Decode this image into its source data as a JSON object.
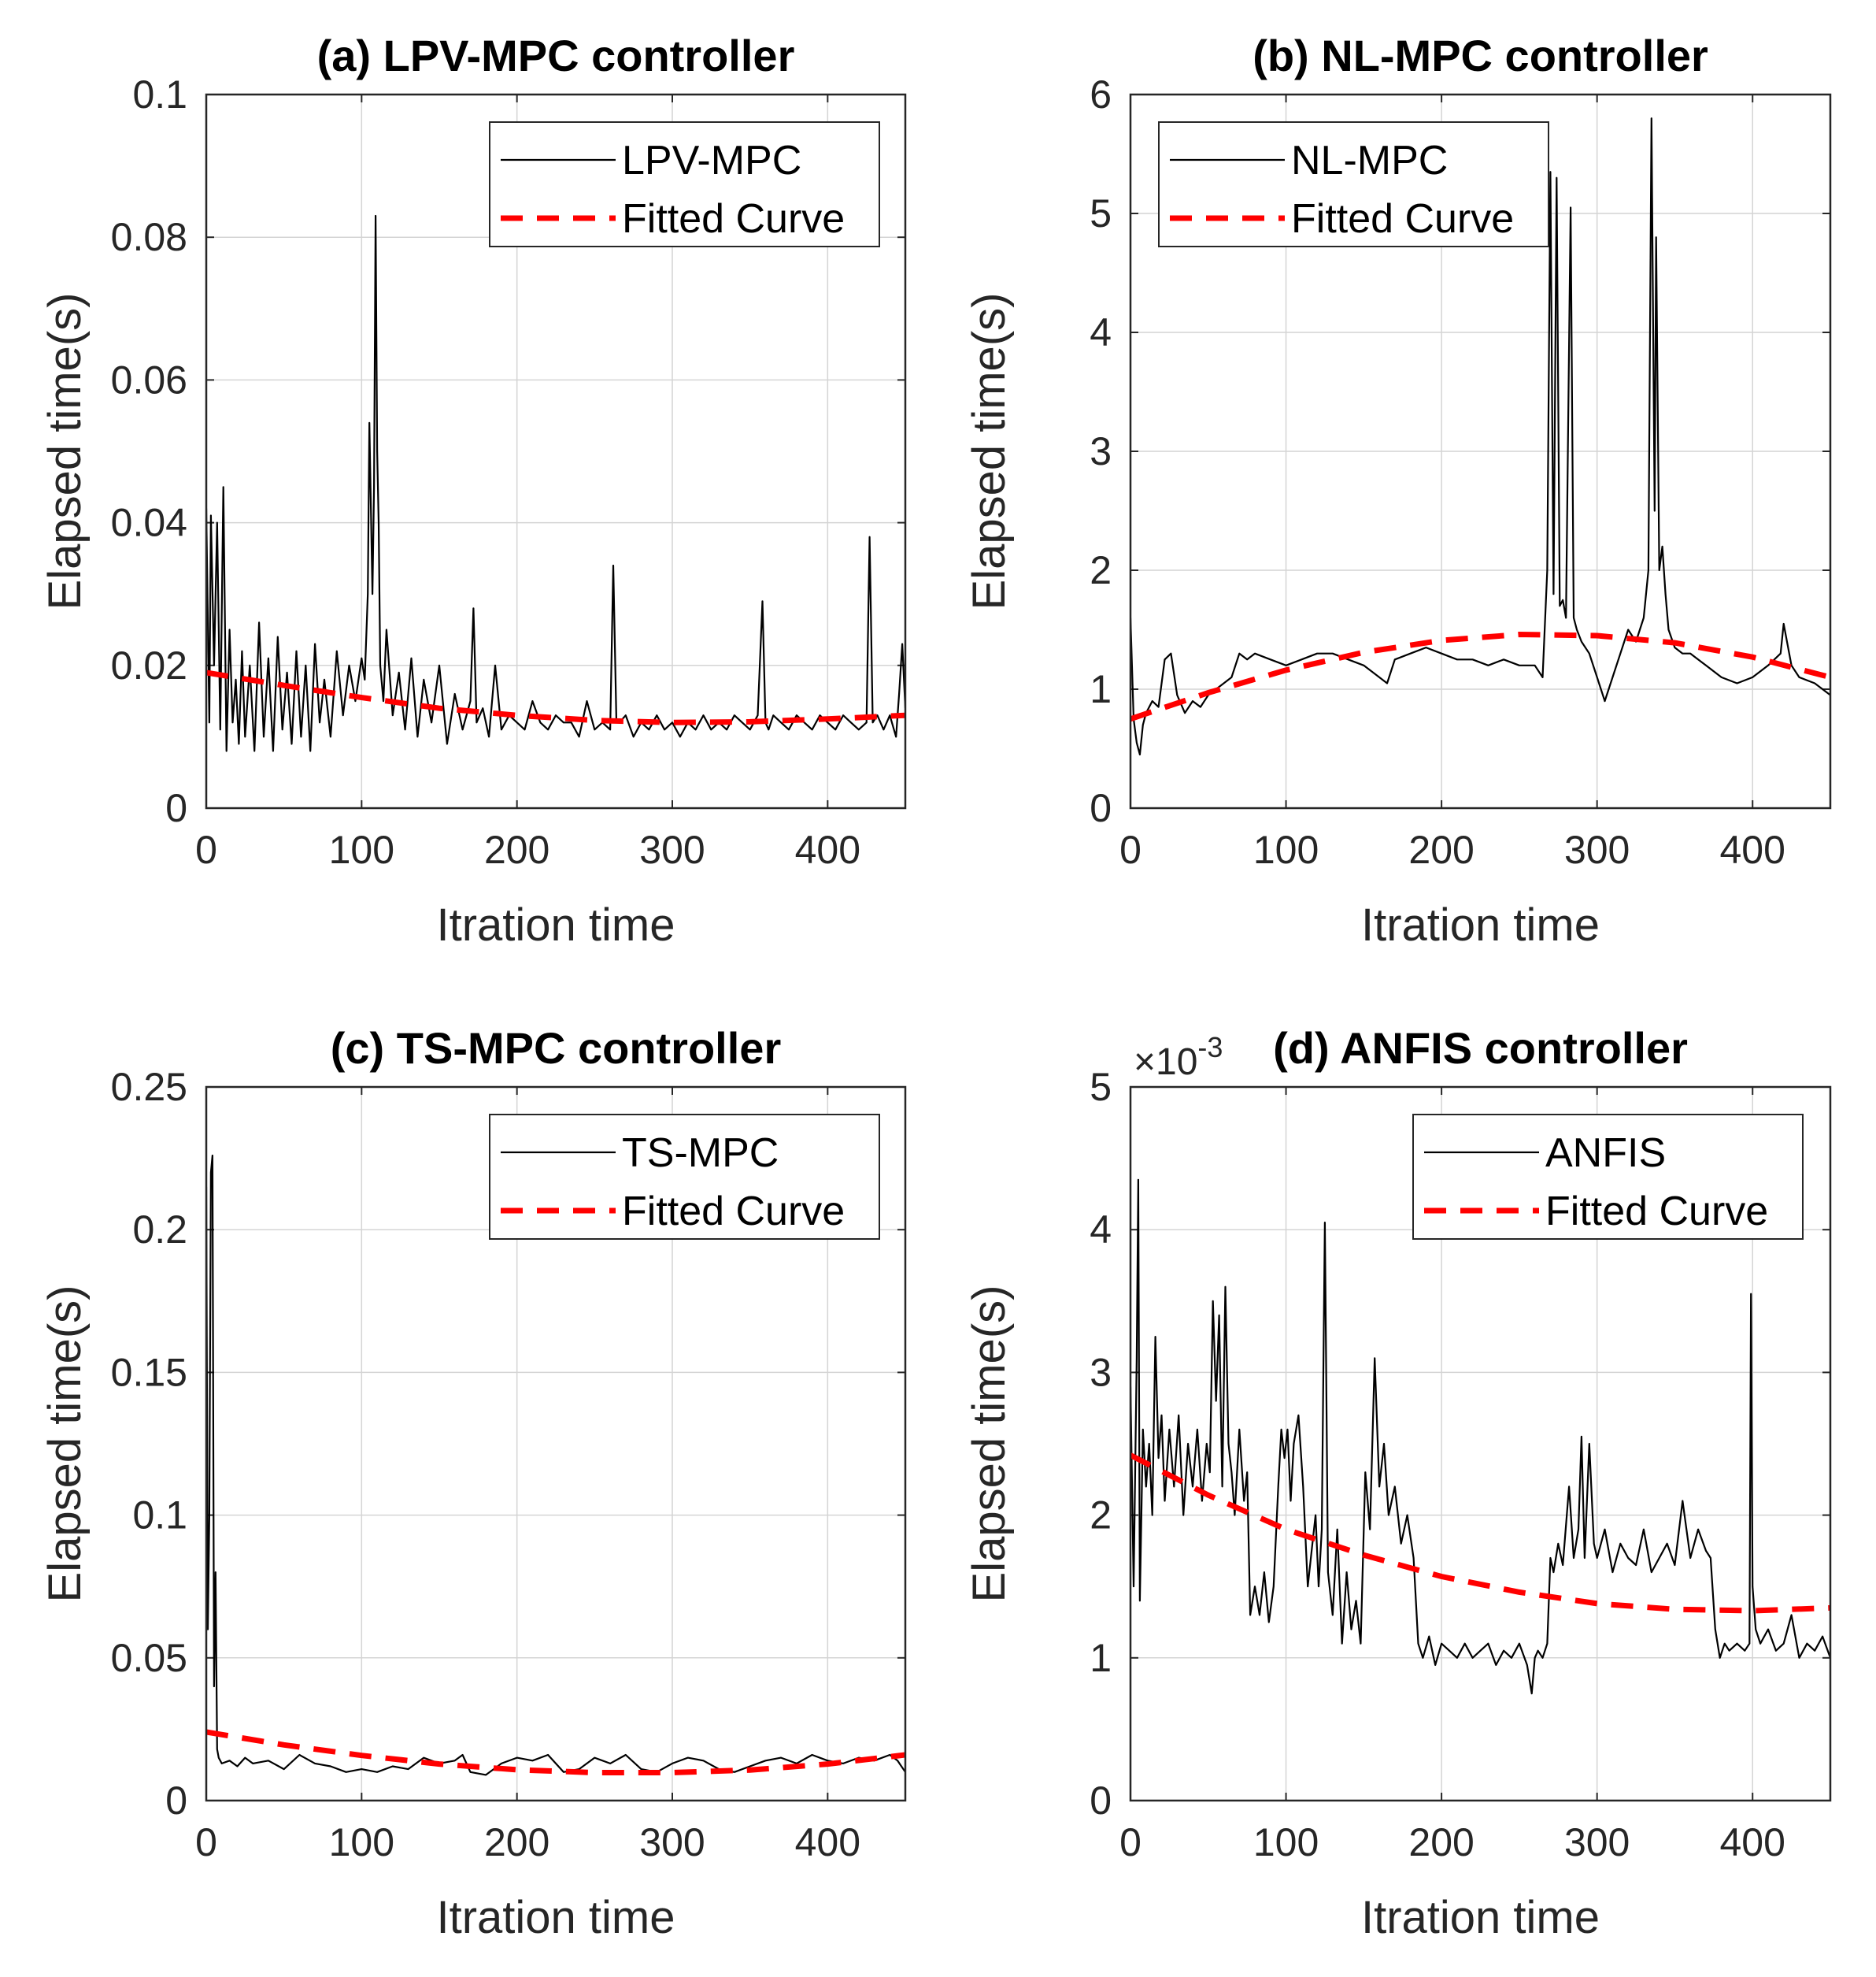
{
  "chart_data": [
    {
      "type": "line",
      "title": "(a) LPV-MPC controller",
      "xlabel": "Itration time",
      "ylabel": "Elapsed time(s)",
      "xlim": [
        0,
        450
      ],
      "ylim": [
        0,
        0.1
      ],
      "xticks": [
        "0",
        "100",
        "200",
        "300",
        "400"
      ],
      "yticks": [
        "0",
        "0.02",
        "0.04",
        "0.06",
        "0.08",
        "0.1"
      ],
      "ytick_values": [
        0,
        0.02,
        0.04,
        0.06,
        0.08,
        0.1
      ],
      "grid": true,
      "legend_placement": "top-right",
      "exponent_label": "",
      "series": [
        {
          "name": "LPV-MPC",
          "style": "solid-black",
          "x": [
            0,
            2,
            3,
            5,
            7,
            9,
            11,
            13,
            15,
            17,
            19,
            21,
            23,
            25,
            28,
            31,
            34,
            37,
            40,
            43,
            46,
            49,
            52,
            55,
            58,
            61,
            64,
            67,
            70,
            73,
            76,
            80,
            84,
            88,
            92,
            96,
            100,
            102,
            104,
            105,
            107,
            108,
            109,
            110,
            111,
            112,
            114,
            116,
            120,
            124,
            128,
            132,
            136,
            140,
            145,
            150,
            155,
            160,
            165,
            170,
            172,
            174,
            178,
            182,
            186,
            190,
            195,
            200,
            205,
            210,
            215,
            220,
            225,
            230,
            235,
            240,
            245,
            250,
            255,
            260,
            262,
            264,
            266,
            270,
            275,
            280,
            285,
            290,
            295,
            300,
            305,
            310,
            315,
            320,
            325,
            330,
            335,
            340,
            345,
            350,
            355,
            358,
            360,
            362,
            365,
            370,
            375,
            380,
            385,
            390,
            395,
            400,
            405,
            410,
            415,
            420,
            425,
            427,
            429,
            432,
            436,
            440,
            444,
            446,
            448,
            450
          ],
          "y": [
            0.042,
            0.012,
            0.041,
            0.02,
            0.04,
            0.011,
            0.045,
            0.008,
            0.025,
            0.012,
            0.018,
            0.009,
            0.022,
            0.01,
            0.02,
            0.008,
            0.026,
            0.01,
            0.021,
            0.008,
            0.024,
            0.011,
            0.019,
            0.009,
            0.022,
            0.01,
            0.02,
            0.008,
            0.023,
            0.012,
            0.018,
            0.01,
            0.022,
            0.013,
            0.02,
            0.015,
            0.021,
            0.018,
            0.03,
            0.054,
            0.03,
            0.045,
            0.083,
            0.05,
            0.04,
            0.02,
            0.015,
            0.025,
            0.013,
            0.019,
            0.011,
            0.021,
            0.01,
            0.018,
            0.012,
            0.02,
            0.009,
            0.016,
            0.011,
            0.015,
            0.028,
            0.012,
            0.014,
            0.01,
            0.02,
            0.011,
            0.013,
            0.012,
            0.011,
            0.015,
            0.012,
            0.011,
            0.013,
            0.012,
            0.012,
            0.01,
            0.015,
            0.011,
            0.012,
            0.011,
            0.034,
            0.012,
            0.012,
            0.013,
            0.01,
            0.012,
            0.011,
            0.013,
            0.011,
            0.012,
            0.01,
            0.012,
            0.011,
            0.013,
            0.011,
            0.012,
            0.011,
            0.013,
            0.012,
            0.011,
            0.013,
            0.029,
            0.012,
            0.011,
            0.013,
            0.012,
            0.011,
            0.013,
            0.012,
            0.011,
            0.013,
            0.012,
            0.011,
            0.013,
            0.012,
            0.011,
            0.012,
            0.038,
            0.012,
            0.013,
            0.011,
            0.013,
            0.01,
            0.016,
            0.023,
            0.014
          ]
        },
        {
          "name": "Fitted Curve",
          "style": "dashed-red",
          "x": [
            0,
            50,
            100,
            150,
            200,
            250,
            300,
            350,
            400,
            450
          ],
          "y": [
            0.019,
            0.0172,
            0.0155,
            0.014,
            0.013,
            0.0123,
            0.012,
            0.0121,
            0.0125,
            0.013
          ]
        }
      ]
    },
    {
      "type": "line",
      "title": "(b) NL-MPC controller",
      "xlabel": "Itration time",
      "ylabel": "Elapsed time(s)",
      "xlim": [
        0,
        450
      ],
      "ylim": [
        0,
        6
      ],
      "xticks": [
        "0",
        "100",
        "200",
        "300",
        "400"
      ],
      "yticks": [
        "0",
        "1",
        "2",
        "3",
        "4",
        "5",
        "6"
      ],
      "ytick_values": [
        0,
        1,
        2,
        3,
        4,
        5,
        6
      ],
      "grid": true,
      "legend_placement": "top-left",
      "exponent_label": "",
      "series": [
        {
          "name": "NL-MPC",
          "style": "solid-black",
          "x": [
            0,
            2,
            4,
            6,
            8,
            10,
            14,
            18,
            22,
            26,
            30,
            35,
            40,
            45,
            50,
            55,
            60,
            65,
            70,
            75,
            80,
            90,
            100,
            110,
            120,
            130,
            140,
            150,
            160,
            165,
            170,
            180,
            190,
            200,
            210,
            220,
            230,
            240,
            250,
            260,
            265,
            268,
            270,
            272,
            274,
            276,
            278,
            280,
            283,
            285,
            287,
            290,
            295,
            300,
            305,
            310,
            315,
            320,
            325,
            330,
            333,
            335,
            337,
            338,
            340,
            342,
            344,
            346,
            350,
            355,
            360,
            370,
            380,
            390,
            400,
            410,
            418,
            420,
            425,
            430,
            440,
            450
          ],
          "y": [
            1.6,
            0.75,
            0.55,
            0.45,
            0.7,
            0.8,
            0.9,
            0.85,
            1.25,
            1.3,
            0.95,
            0.8,
            0.9,
            0.85,
            0.95,
            1.0,
            1.05,
            1.1,
            1.3,
            1.25,
            1.3,
            1.25,
            1.2,
            1.25,
            1.3,
            1.3,
            1.25,
            1.2,
            1.1,
            1.05,
            1.25,
            1.3,
            1.35,
            1.3,
            1.25,
            1.25,
            1.2,
            1.25,
            1.2,
            1.2,
            1.1,
            2.0,
            5.35,
            1.8,
            5.3,
            1.7,
            1.75,
            1.6,
            5.05,
            1.6,
            1.5,
            1.4,
            1.3,
            1.1,
            0.9,
            1.1,
            1.3,
            1.5,
            1.4,
            1.6,
            2.0,
            5.8,
            2.5,
            4.8,
            2.0,
            2.2,
            1.8,
            1.5,
            1.35,
            1.3,
            1.3,
            1.2,
            1.1,
            1.05,
            1.1,
            1.2,
            1.3,
            1.55,
            1.2,
            1.1,
            1.05,
            0.95
          ]
        },
        {
          "name": "Fitted Curve",
          "style": "dashed-red",
          "x": [
            0,
            50,
            100,
            150,
            200,
            250,
            300,
            350,
            400,
            450
          ],
          "y": [
            0.75,
            0.97,
            1.16,
            1.31,
            1.41,
            1.46,
            1.45,
            1.39,
            1.27,
            1.1
          ]
        }
      ]
    },
    {
      "type": "line",
      "title": "(c) TS-MPC controller",
      "xlabel": "Itration time",
      "ylabel": "Elapsed time(s)",
      "xlim": [
        0,
        450
      ],
      "ylim": [
        0,
        0.25
      ],
      "xticks": [
        "0",
        "100",
        "200",
        "300",
        "400"
      ],
      "yticks": [
        "0",
        "0.05",
        "0.1",
        "0.15",
        "0.2",
        "0.25"
      ],
      "ytick_values": [
        0,
        0.05,
        0.1,
        0.15,
        0.2,
        0.25
      ],
      "grid": true,
      "legend_placement": "top-right",
      "exponent_label": "",
      "series": [
        {
          "name": "TS-MPC",
          "style": "solid-black",
          "x": [
            0,
            1,
            2,
            3,
            4,
            5,
            6,
            7,
            8,
            10,
            15,
            20,
            25,
            30,
            40,
            50,
            60,
            70,
            80,
            90,
            100,
            110,
            120,
            130,
            140,
            150,
            160,
            165,
            170,
            180,
            190,
            200,
            210,
            220,
            230,
            240,
            250,
            260,
            270,
            280,
            290,
            300,
            310,
            320,
            330,
            340,
            350,
            360,
            370,
            380,
            390,
            400,
            410,
            420,
            430,
            440,
            445,
            450
          ],
          "y": [
            0.215,
            0.06,
            0.1,
            0.22,
            0.226,
            0.04,
            0.08,
            0.018,
            0.015,
            0.013,
            0.014,
            0.012,
            0.015,
            0.013,
            0.014,
            0.011,
            0.016,
            0.013,
            0.012,
            0.01,
            0.011,
            0.01,
            0.012,
            0.011,
            0.015,
            0.013,
            0.014,
            0.016,
            0.01,
            0.009,
            0.013,
            0.015,
            0.014,
            0.016,
            0.01,
            0.011,
            0.015,
            0.013,
            0.016,
            0.011,
            0.01,
            0.013,
            0.015,
            0.014,
            0.011,
            0.01,
            0.012,
            0.014,
            0.015,
            0.013,
            0.016,
            0.014,
            0.013,
            0.015,
            0.014,
            0.016,
            0.014,
            0.01
          ]
        },
        {
          "name": "Fitted Curve",
          "style": "dashed-red",
          "x": [
            0,
            50,
            100,
            150,
            200,
            250,
            300,
            350,
            400,
            450
          ],
          "y": [
            0.024,
            0.0195,
            0.0158,
            0.0128,
            0.0108,
            0.0098,
            0.0098,
            0.0107,
            0.0128,
            0.016
          ]
        }
      ]
    },
    {
      "type": "line",
      "title": "(d) ANFIS controller",
      "xlabel": "Itration time",
      "ylabel": "Elapsed time(s)",
      "xlim": [
        0,
        450
      ],
      "ylim": [
        0,
        5
      ],
      "xticks": [
        "0",
        "100",
        "200",
        "300",
        "400"
      ],
      "yticks": [
        "0",
        "1",
        "2",
        "3",
        "4",
        "5"
      ],
      "ytick_values": [
        0,
        1,
        2,
        3,
        4,
        5
      ],
      "grid": true,
      "legend_placement": "top-right",
      "exponent_label": "×10",
      "exponent_power": "-3",
      "series": [
        {
          "name": "ANFIS",
          "style": "solid-black",
          "x": [
            0,
            2,
            4,
            5,
            6,
            8,
            10,
            12,
            14,
            16,
            18,
            20,
            22,
            25,
            28,
            31,
            34,
            37,
            40,
            43,
            46,
            49,
            51,
            53,
            55,
            57,
            59,
            61,
            63,
            65,
            67,
            70,
            73,
            75,
            77,
            80,
            83,
            86,
            89,
            92,
            95,
            97,
            99,
            101,
            103,
            105,
            108,
            111,
            114,
            117,
            119,
            121,
            123,
            125,
            127,
            130,
            133,
            136,
            139,
            142,
            145,
            148,
            151,
            154,
            157,
            160,
            163,
            166,
            170,
            174,
            178,
            182,
            185,
            188,
            192,
            196,
            200,
            205,
            210,
            215,
            220,
            225,
            230,
            235,
            240,
            245,
            250,
            255,
            258,
            260,
            262,
            265,
            268,
            270,
            272,
            275,
            278,
            282,
            285,
            288,
            290,
            292,
            295,
            298,
            300,
            305,
            310,
            315,
            320,
            325,
            330,
            335,
            340,
            345,
            350,
            355,
            360,
            365,
            370,
            373,
            376,
            379,
            382,
            385,
            390,
            395,
            398,
            399,
            400,
            402,
            405,
            410,
            415,
            420,
            425,
            430,
            435,
            440,
            445,
            450
          ],
          "y": [
            2.9,
            1.5,
            3.1,
            4.35,
            1.4,
            2.6,
            2.2,
            2.5,
            2.0,
            3.25,
            2.4,
            2.7,
            2.1,
            2.6,
            2.2,
            2.7,
            2.0,
            2.5,
            2.2,
            2.6,
            2.1,
            2.5,
            2.3,
            3.5,
            2.8,
            3.4,
            2.2,
            3.6,
            2.5,
            2.3,
            2.0,
            2.6,
            2.1,
            2.3,
            1.3,
            1.5,
            1.3,
            1.6,
            1.25,
            1.5,
            2.2,
            2.6,
            2.4,
            2.6,
            2.1,
            2.5,
            2.7,
            2.2,
            1.5,
            1.8,
            2.0,
            1.5,
            1.9,
            4.05,
            1.6,
            1.3,
            1.9,
            1.1,
            1.6,
            1.2,
            1.4,
            1.1,
            2.3,
            1.9,
            3.1,
            2.2,
            2.5,
            2.0,
            2.2,
            1.8,
            2.0,
            1.7,
            1.1,
            1.0,
            1.15,
            0.95,
            1.1,
            1.05,
            1.0,
            1.1,
            1.0,
            1.05,
            1.1,
            0.95,
            1.05,
            1.0,
            1.1,
            0.95,
            0.75,
            1.0,
            1.05,
            1.0,
            1.1,
            1.7,
            1.6,
            1.8,
            1.65,
            2.2,
            1.7,
            1.9,
            2.55,
            1.7,
            2.5,
            1.8,
            1.7,
            1.9,
            1.6,
            1.8,
            1.7,
            1.65,
            1.9,
            1.6,
            1.7,
            1.8,
            1.65,
            2.1,
            1.7,
            1.9,
            1.75,
            1.7,
            1.2,
            1.0,
            1.1,
            1.05,
            1.1,
            1.05,
            1.1,
            3.55,
            1.5,
            1.2,
            1.1,
            1.2,
            1.05,
            1.1,
            1.3,
            1.0,
            1.1,
            1.05,
            1.15,
            1.0
          ]
        },
        {
          "name": "Fitted Curve",
          "style": "dashed-red",
          "x": [
            0,
            50,
            100,
            150,
            200,
            250,
            300,
            350,
            400,
            450
          ],
          "y": [
            2.42,
            2.14,
            1.9,
            1.72,
            1.57,
            1.46,
            1.38,
            1.34,
            1.33,
            1.35
          ]
        }
      ]
    }
  ]
}
